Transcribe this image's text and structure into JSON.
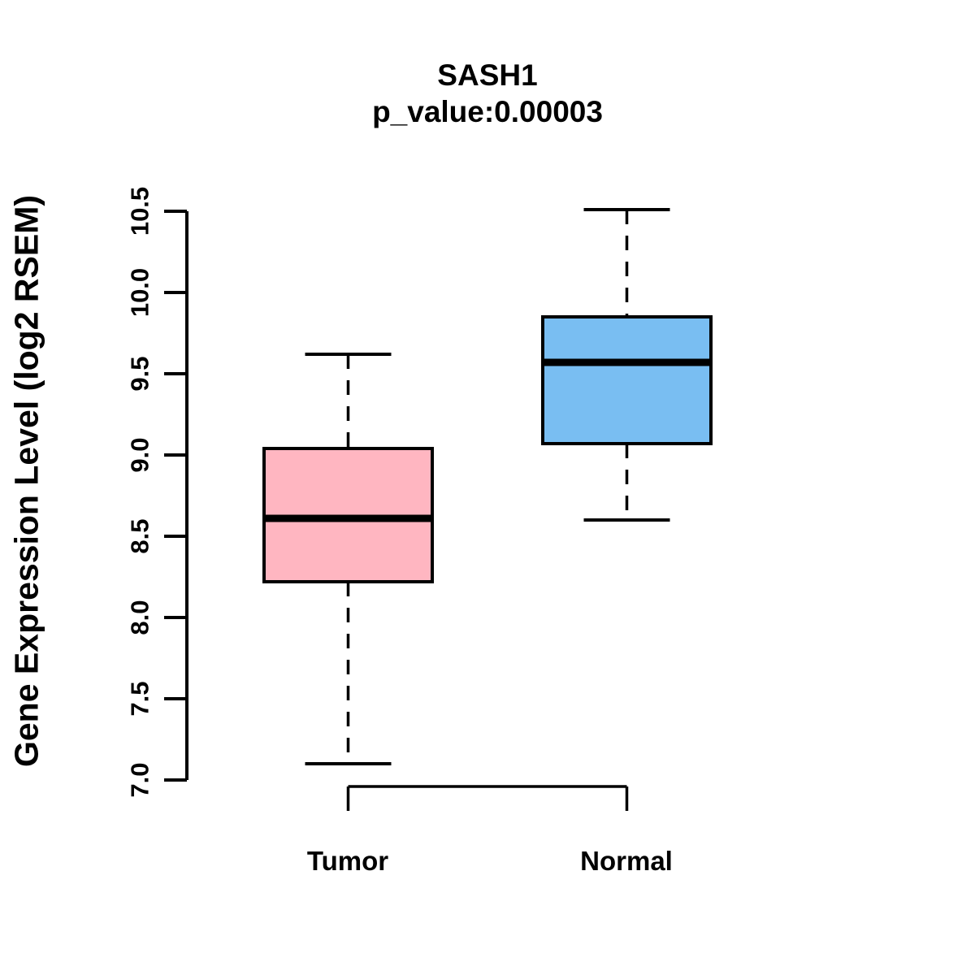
{
  "title": "SASH1",
  "subtitle": "p_value:0.00003",
  "chart_data": {
    "type": "boxplot",
    "title": "SASH1",
    "subtitle": "p_value:0.00003",
    "ylabel": "Gene Expression Level (log2 RSEM)",
    "categories": [
      "Tumor",
      "Normal"
    ],
    "ylim": [
      7.0,
      10.5
    ],
    "yticks": [
      "7.0",
      "7.5",
      "8.0",
      "8.5",
      "9.0",
      "9.5",
      "10.0",
      "10.5"
    ],
    "grid": false,
    "series": [
      {
        "name": "Tumor",
        "fill": "#FFB6C1",
        "whisker_low": 7.1,
        "q1": 8.22,
        "median": 8.61,
        "q3": 9.04,
        "whisker_high": 9.62
      },
      {
        "name": "Normal",
        "fill": "#79BEF2",
        "whisker_low": 8.6,
        "q1": 9.07,
        "median": 9.57,
        "q3": 9.85,
        "whisker_high": 10.51
      }
    ],
    "line_color": "#000000"
  }
}
